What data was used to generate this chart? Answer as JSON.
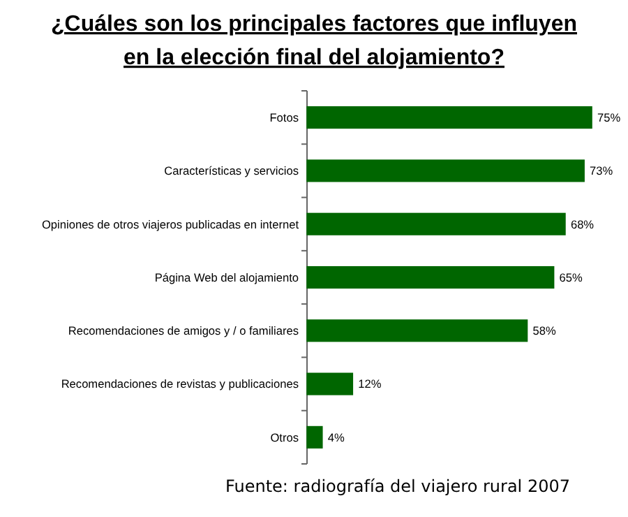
{
  "chart_data": {
    "type": "bar",
    "orientation": "horizontal",
    "title": "¿Cuáles son los principales factores que influyen\nen la elección final del alojamiento?",
    "categories": [
      "Fotos",
      "Características y servicios",
      "Opiniones de otros viajeros publicadas en internet",
      "Página Web del alojamiento",
      "Recomendaciones de amigos y / o familiares",
      "Recomendaciones de revistas y publicaciones",
      "Otros"
    ],
    "values": [
      75,
      73,
      68,
      65,
      58,
      12,
      4
    ],
    "value_labels": [
      "75%",
      "73%",
      "68%",
      "65%",
      "58%",
      "12%",
      "4%"
    ],
    "color": "#006600",
    "annotations": [
      "Fuente: radiografía del viajero rural 2007"
    ]
  }
}
